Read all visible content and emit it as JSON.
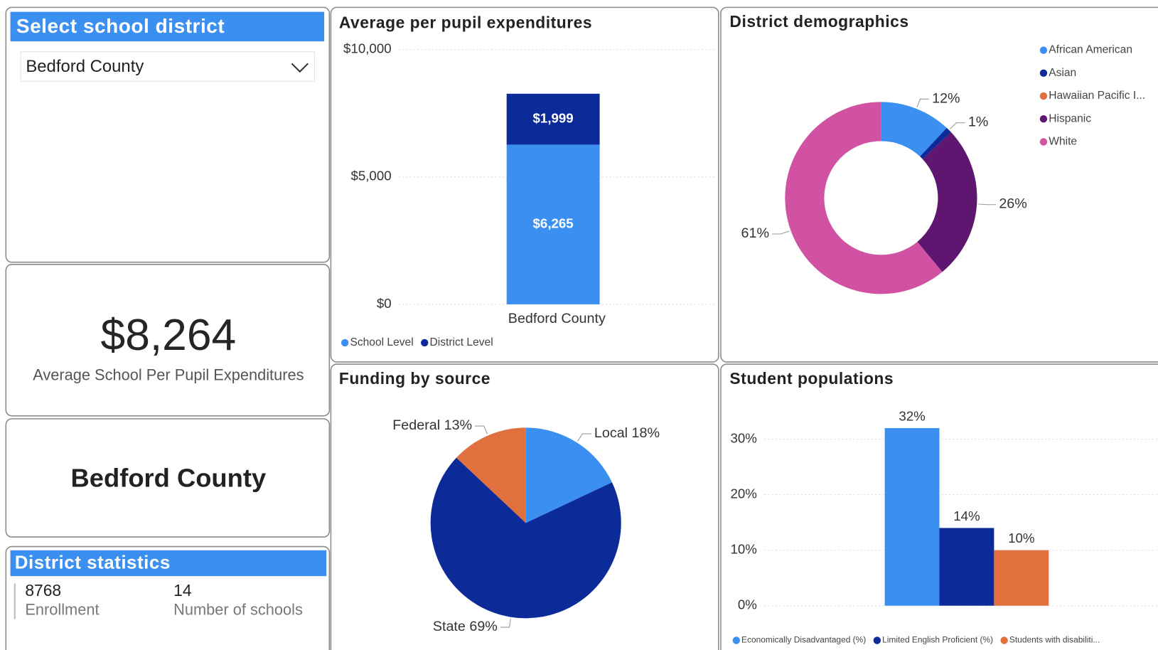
{
  "filter": {
    "title": "Select school district",
    "selected": "Bedford County"
  },
  "kpi": {
    "value": "$8,264",
    "label": "Average School Per Pupil Expenditures"
  },
  "district_card": {
    "name": "Bedford County"
  },
  "statistics": {
    "title": "District statistics",
    "items": [
      {
        "value": "8768",
        "label": "Enrollment"
      },
      {
        "value": "14",
        "label": "Number of schools"
      }
    ]
  },
  "chart_data": [
    {
      "type": "stacked_bar",
      "title": "Average per pupil expenditures",
      "categories": [
        "Bedford County"
      ],
      "series": [
        {
          "name": "School Level",
          "color": "#3a8ff0",
          "values": [
            6265
          ],
          "value_labels": [
            "$6,265"
          ]
        },
        {
          "name": "District Level",
          "color": "#0c2a98",
          "values": [
            1999
          ],
          "value_labels": [
            "$1,999"
          ]
        }
      ],
      "ylim": [
        0,
        10000
      ],
      "yticks": [
        {
          "value": 0,
          "label": "$0"
        },
        {
          "value": 5000,
          "label": "$5,000"
        },
        {
          "value": 10000,
          "label": "$10,000"
        }
      ],
      "grid": true,
      "legend": "bottom"
    },
    {
      "type": "donut",
      "title": "District demographics",
      "categories": [
        "African American",
        "Asian",
        "Hawaiian Pacific I...",
        "Hispanic",
        "White"
      ],
      "values": [
        12,
        1,
        0,
        26,
        61
      ],
      "value_labels": [
        "12%",
        "1%",
        null,
        "26%",
        "61%"
      ],
      "colors": [
        "#3a8ff0",
        "#0c2a98",
        "#e0703e",
        "#5e1670",
        "#d152a2"
      ],
      "legend": "top-right"
    },
    {
      "type": "pie",
      "title": "Funding by source",
      "categories": [
        "Local",
        "State",
        "Federal"
      ],
      "values": [
        18,
        69,
        13
      ],
      "value_labels": [
        "18%",
        "69%",
        "13%"
      ],
      "colors": [
        "#3a8ff0",
        "#0c2a98",
        "#e0703e"
      ]
    },
    {
      "type": "grouped_bar",
      "title": "Student populations",
      "categories": [
        null
      ],
      "series": [
        {
          "name": "Economically Disadvantaged (%)",
          "color": "#3a8ff0",
          "values": [
            32
          ],
          "value_labels": [
            "32%"
          ]
        },
        {
          "name": "Limited English Proficient (%)",
          "color": "#0c2a98",
          "values": [
            14
          ],
          "value_labels": [
            "14%"
          ]
        },
        {
          "name": "Students with disabiliti...",
          "color": "#e0703e",
          "values": [
            10
          ],
          "value_labels": [
            "10%"
          ]
        }
      ],
      "ylim": [
        0,
        35
      ],
      "yticks": [
        {
          "value": 0,
          "label": "0%"
        },
        {
          "value": 10,
          "label": "10%"
        },
        {
          "value": 20,
          "label": "20%"
        },
        {
          "value": 30,
          "label": "30%"
        }
      ],
      "grid": true,
      "legend": "bottom"
    }
  ]
}
